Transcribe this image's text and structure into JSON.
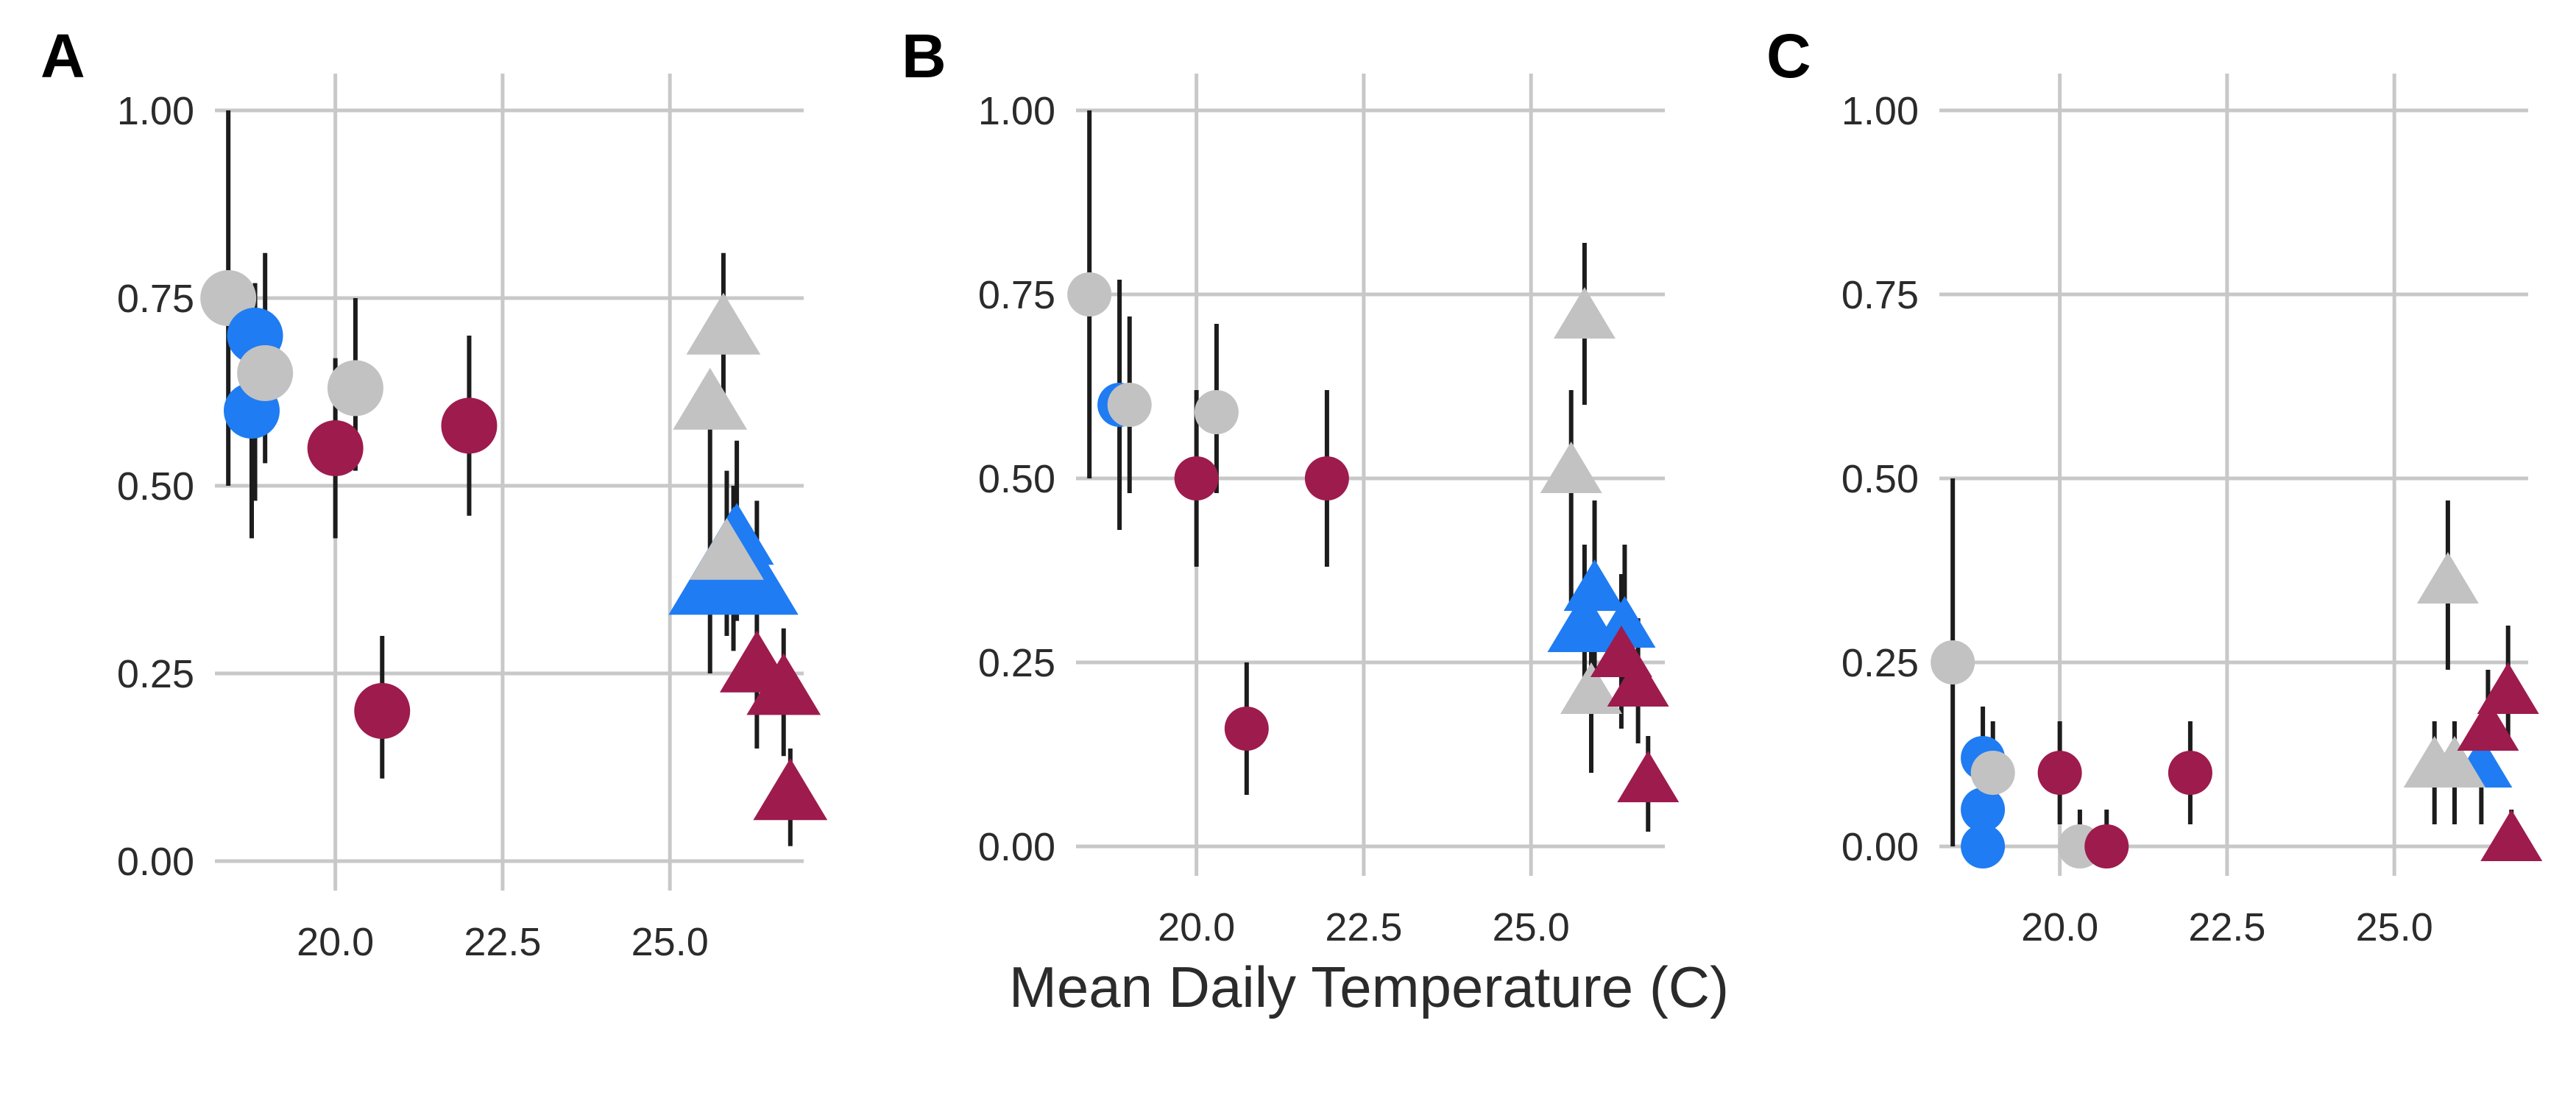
{
  "colors": {
    "blue": "#1f7cf2",
    "gray": "#c2c2c2",
    "maroon": "#9e1b4d"
  },
  "figure": {
    "xlabel": "Mean Daily Temperature (C)"
  },
  "chart_data": [
    {
      "type": "scatter",
      "panel_label": "A",
      "xlim": [
        18.2,
        27.0
      ],
      "ylim": [
        0.0,
        1.0
      ],
      "xticks": [
        "20.0",
        "22.5",
        "25.0"
      ],
      "yticks": [
        "0.00",
        "0.25",
        "0.50",
        "0.75",
        "1.00"
      ],
      "points": [
        {
          "x": 18.4,
          "y": 0.75,
          "lo": 0.5,
          "hi": 1.0,
          "color": "gray",
          "shape": "circle",
          "size": "medium"
        },
        {
          "x": 18.8,
          "y": 0.7,
          "lo": 0.48,
          "hi": 0.77,
          "color": "blue",
          "shape": "circle",
          "size": "medium"
        },
        {
          "x": 18.75,
          "y": 0.6,
          "lo": 0.43,
          "hi": 0.76,
          "color": "blue",
          "shape": "circle",
          "size": "medium"
        },
        {
          "x": 18.95,
          "y": 0.65,
          "lo": 0.53,
          "hi": 0.81,
          "color": "gray",
          "shape": "circle",
          "size": "medium"
        },
        {
          "x": 20.0,
          "y": 0.55,
          "lo": 0.43,
          "hi": 0.67,
          "color": "maroon",
          "shape": "circle",
          "size": "medium"
        },
        {
          "x": 20.3,
          "y": 0.63,
          "lo": 0.52,
          "hi": 0.75,
          "color": "gray",
          "shape": "circle",
          "size": "medium"
        },
        {
          "x": 20.7,
          "y": 0.2,
          "lo": 0.11,
          "hi": 0.3,
          "color": "maroon",
          "shape": "circle",
          "size": "medium"
        },
        {
          "x": 22.0,
          "y": 0.58,
          "lo": 0.46,
          "hi": 0.7,
          "color": "maroon",
          "shape": "circle",
          "size": "medium"
        },
        {
          "x": 25.8,
          "y": 0.71,
          "lo": 0.6,
          "hi": 0.81,
          "color": "gray",
          "shape": "triangle",
          "size": "medium"
        },
        {
          "x": 25.6,
          "y": 0.61,
          "lo": 0.25,
          "hi": 0.64,
          "color": "gray",
          "shape": "triangle",
          "size": "medium"
        },
        {
          "x": 26.0,
          "y": 0.43,
          "lo": 0.32,
          "hi": 0.56,
          "color": "blue",
          "shape": "triangle",
          "size": "medium"
        },
        {
          "x": 25.95,
          "y": 0.39,
          "lo": 0.28,
          "hi": 0.5,
          "color": "blue",
          "shape": "triangle",
          "size": "large"
        },
        {
          "x": 25.85,
          "y": 0.41,
          "lo": 0.3,
          "hi": 0.52,
          "color": "gray",
          "shape": "triangle",
          "size": "medium"
        },
        {
          "x": 26.3,
          "y": 0.26,
          "lo": 0.15,
          "hi": 0.48,
          "color": "maroon",
          "shape": "triangle",
          "size": "medium"
        },
        {
          "x": 26.7,
          "y": 0.23,
          "lo": 0.14,
          "hi": 0.31,
          "color": "maroon",
          "shape": "triangle",
          "size": "medium"
        },
        {
          "x": 26.8,
          "y": 0.09,
          "lo": 0.02,
          "hi": 0.15,
          "color": "maroon",
          "shape": "triangle",
          "size": "medium"
        }
      ]
    },
    {
      "type": "scatter",
      "panel_label": "B",
      "xlim": [
        18.2,
        27.0
      ],
      "ylim": [
        0.0,
        1.0
      ],
      "xticks": [
        "20.0",
        "22.5",
        "25.0"
      ],
      "yticks": [
        "0.00",
        "0.25",
        "0.50",
        "0.75",
        "1.00"
      ],
      "points": [
        {
          "x": 18.4,
          "y": 0.75,
          "lo": 0.5,
          "hi": 1.0,
          "color": "gray",
          "shape": "circle",
          "size": "small"
        },
        {
          "x": 18.85,
          "y": 0.6,
          "lo": 0.43,
          "hi": 0.77,
          "color": "blue",
          "shape": "circle",
          "size": "small"
        },
        {
          "x": 19.0,
          "y": 0.6,
          "lo": 0.48,
          "hi": 0.72,
          "color": "gray",
          "shape": "circle",
          "size": "small"
        },
        {
          "x": 20.0,
          "y": 0.5,
          "lo": 0.38,
          "hi": 0.62,
          "color": "maroon",
          "shape": "circle",
          "size": "small"
        },
        {
          "x": 20.3,
          "y": 0.59,
          "lo": 0.48,
          "hi": 0.71,
          "color": "gray",
          "shape": "circle",
          "size": "small"
        },
        {
          "x": 20.75,
          "y": 0.16,
          "lo": 0.07,
          "hi": 0.25,
          "color": "maroon",
          "shape": "circle",
          "size": "small"
        },
        {
          "x": 21.95,
          "y": 0.5,
          "lo": 0.38,
          "hi": 0.62,
          "color": "maroon",
          "shape": "circle",
          "size": "small"
        },
        {
          "x": 25.8,
          "y": 0.72,
          "lo": 0.6,
          "hi": 0.82,
          "color": "gray",
          "shape": "triangle",
          "size": "small"
        },
        {
          "x": 25.6,
          "y": 0.51,
          "lo": 0.33,
          "hi": 0.62,
          "color": "gray",
          "shape": "triangle",
          "size": "small"
        },
        {
          "x": 25.95,
          "y": 0.35,
          "lo": 0.23,
          "hi": 0.47,
          "color": "blue",
          "shape": "triangle",
          "size": "small"
        },
        {
          "x": 25.8,
          "y": 0.3,
          "lo": 0.19,
          "hi": 0.41,
          "color": "blue",
          "shape": "triangle",
          "size": "medium"
        },
        {
          "x": 26.4,
          "y": 0.3,
          "lo": 0.19,
          "hi": 0.41,
          "color": "blue",
          "shape": "triangle",
          "size": "small"
        },
        {
          "x": 25.9,
          "y": 0.21,
          "lo": 0.1,
          "hi": 0.3,
          "color": "gray",
          "shape": "triangle",
          "size": "small"
        },
        {
          "x": 26.35,
          "y": 0.26,
          "lo": 0.16,
          "hi": 0.37,
          "color": "maroon",
          "shape": "triangle",
          "size": "small"
        },
        {
          "x": 26.6,
          "y": 0.22,
          "lo": 0.14,
          "hi": 0.31,
          "color": "maroon",
          "shape": "triangle",
          "size": "small"
        },
        {
          "x": 26.75,
          "y": 0.09,
          "lo": 0.02,
          "hi": 0.15,
          "color": "maroon",
          "shape": "triangle",
          "size": "small"
        }
      ]
    },
    {
      "type": "scatter",
      "panel_label": "C",
      "xlim": [
        18.2,
        27.0
      ],
      "ylim": [
        0.0,
        1.0
      ],
      "xticks": [
        "20.0",
        "22.5",
        "25.0"
      ],
      "yticks": [
        "0.00",
        "0.25",
        "0.50",
        "0.75",
        "1.00"
      ],
      "points": [
        {
          "x": 18.4,
          "y": 0.25,
          "lo": 0.0,
          "hi": 0.5,
          "color": "gray",
          "shape": "circle",
          "size": "small"
        },
        {
          "x": 18.85,
          "y": 0.12,
          "lo": 0.04,
          "hi": 0.19,
          "color": "blue",
          "shape": "circle",
          "size": "small"
        },
        {
          "x": 18.85,
          "y": 0.05,
          "lo": 0.0,
          "hi": 0.12,
          "color": "blue",
          "shape": "circle",
          "size": "small"
        },
        {
          "x": 18.85,
          "y": 0.0,
          "lo": 0.0,
          "hi": 0.06,
          "color": "blue",
          "shape": "circle",
          "size": "small"
        },
        {
          "x": 19.0,
          "y": 0.1,
          "lo": 0.03,
          "hi": 0.17,
          "color": "gray",
          "shape": "circle",
          "size": "small"
        },
        {
          "x": 20.0,
          "y": 0.1,
          "lo": 0.03,
          "hi": 0.17,
          "color": "maroon",
          "shape": "circle",
          "size": "small"
        },
        {
          "x": 20.3,
          "y": 0.0,
          "lo": 0.0,
          "hi": 0.05,
          "color": "gray",
          "shape": "circle",
          "size": "small"
        },
        {
          "x": 20.7,
          "y": 0.0,
          "lo": 0.0,
          "hi": 0.05,
          "color": "maroon",
          "shape": "circle",
          "size": "small"
        },
        {
          "x": 21.95,
          "y": 0.1,
          "lo": 0.03,
          "hi": 0.17,
          "color": "maroon",
          "shape": "circle",
          "size": "small"
        },
        {
          "x": 25.8,
          "y": 0.36,
          "lo": 0.24,
          "hi": 0.47,
          "color": "gray",
          "shape": "triangle",
          "size": "small"
        },
        {
          "x": 25.6,
          "y": 0.11,
          "lo": 0.03,
          "hi": 0.17,
          "color": "gray",
          "shape": "triangle",
          "size": "small"
        },
        {
          "x": 26.3,
          "y": 0.11,
          "lo": 0.03,
          "hi": 0.17,
          "color": "blue",
          "shape": "triangle",
          "size": "small"
        },
        {
          "x": 25.9,
          "y": 0.11,
          "lo": 0.03,
          "hi": 0.17,
          "color": "gray",
          "shape": "triangle",
          "size": "small"
        },
        {
          "x": 26.4,
          "y": 0.16,
          "lo": 0.08,
          "hi": 0.24,
          "color": "maroon",
          "shape": "triangle",
          "size": "small"
        },
        {
          "x": 26.7,
          "y": 0.21,
          "lo": 0.13,
          "hi": 0.3,
          "color": "maroon",
          "shape": "triangle",
          "size": "small"
        },
        {
          "x": 26.75,
          "y": 0.01,
          "lo": 0.0,
          "hi": 0.05,
          "color": "maroon",
          "shape": "triangle",
          "size": "small"
        }
      ]
    }
  ]
}
